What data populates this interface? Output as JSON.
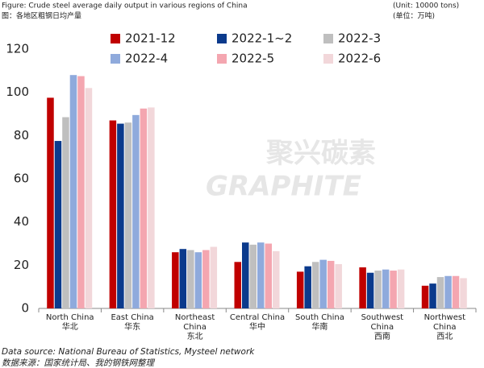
{
  "chart_data": {
    "type": "bar",
    "title": "Figure: Crude steel average daily output in various regions of China",
    "subtitle": "图：各地区粗钢日均产量",
    "unit": "(Unit: 10000 tons)",
    "unit_cn": "(单位：万吨)",
    "source": "Data source: National Bureau of Statistics, Mysteel network",
    "source_cn": "数据来源：国家统计局、我的钢铁网整理",
    "watermark": "聚兴碳素",
    "watermark_en": "GRAPHITE",
    "categories": [
      "North China\n华北",
      "East China\n华东",
      "Northeast\nChina\n东北",
      "Central China\n华中",
      "South China\n华南",
      "Southwest\nChina\n西南",
      "Northwest\nChina\n西北"
    ],
    "series": [
      {
        "name": "2021-12",
        "color": "#c00000",
        "values": [
          97.5,
          87,
          26,
          21.5,
          17,
          19,
          10.5
        ]
      },
      {
        "name": "2022-1~2",
        "color": "#0b3a8c",
        "values": [
          77.5,
          85.5,
          27.5,
          30.5,
          19.5,
          16.5,
          11.5
        ]
      },
      {
        "name": "2022-3",
        "color": "#bfbfbf",
        "values": [
          88.5,
          86,
          27,
          29.5,
          21.5,
          17.5,
          14.5
        ]
      },
      {
        "name": "2022-4",
        "color": "#8faadc",
        "values": [
          108,
          89.5,
          26,
          30.5,
          22.5,
          18,
          15
        ]
      },
      {
        "name": "2022-5",
        "color": "#f4a6b0",
        "values": [
          107.5,
          92.5,
          27,
          30,
          22,
          17.5,
          15
        ]
      },
      {
        "name": "2022-6",
        "color": "#f2d7da",
        "values": [
          102,
          93,
          28.5,
          26.5,
          20.5,
          18,
          14
        ]
      }
    ],
    "ylim": [
      0,
      120
    ],
    "yticks": [
      0,
      20,
      40,
      60,
      80,
      100,
      120
    ],
    "grid": false
  }
}
